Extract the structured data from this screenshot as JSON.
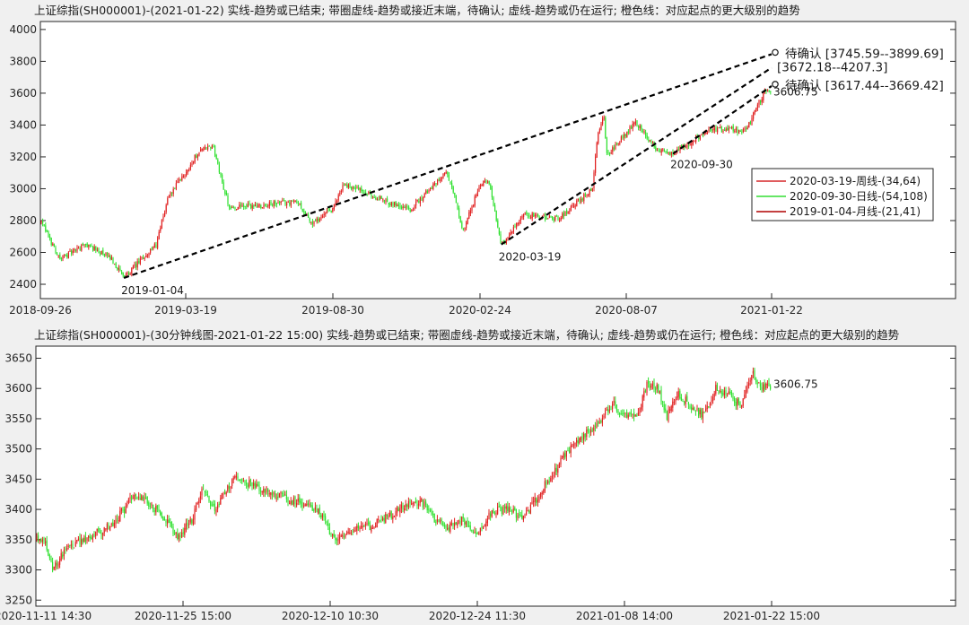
{
  "charts": [
    {
      "title": "上证综指(SH000001)-(2021-01-22)  实线-趋势或已结束;  带圈虚线-趋势或接近末端，待确认;  虚线-趋势或仍在运行;  橙色线：对应起点的更大级别的趋势",
      "chart_data": {
        "type": "line",
        "subtype": "candlestick",
        "x_ticks": [
          "2018-09-26",
          "2019-03-19",
          "2019-08-30",
          "2020-02-24",
          "2020-08-07",
          "2021-01-22"
        ],
        "y_ticks": [
          2400,
          2600,
          2800,
          3000,
          3200,
          3400,
          3600,
          3800,
          4000
        ],
        "ylim": [
          2310,
          4050
        ],
        "grid": false,
        "price_path": [
          {
            "x": "2018-09-26",
            "y": 2800
          },
          {
            "x": "2018-10-19",
            "y": 2560
          },
          {
            "x": "2018-11-20",
            "y": 2650
          },
          {
            "x": "2018-12-20",
            "y": 2560
          },
          {
            "x": "2019-01-04",
            "y": 2440
          },
          {
            "x": "2019-02-12",
            "y": 2650
          },
          {
            "x": "2019-02-26",
            "y": 2950
          },
          {
            "x": "2019-03-19",
            "y": 3100
          },
          {
            "x": "2019-04-04",
            "y": 3250
          },
          {
            "x": "2019-04-19",
            "y": 3260
          },
          {
            "x": "2019-04-26",
            "y": 3090
          },
          {
            "x": "2019-05-07",
            "y": 2880
          },
          {
            "x": "2019-06-17",
            "y": 2900
          },
          {
            "x": "2019-07-22",
            "y": 2920
          },
          {
            "x": "2019-08-06",
            "y": 2780
          },
          {
            "x": "2019-08-30",
            "y": 2870
          },
          {
            "x": "2019-09-12",
            "y": 3030
          },
          {
            "x": "2019-10-18",
            "y": 2950
          },
          {
            "x": "2019-12-03",
            "y": 2870
          },
          {
            "x": "2020-01-13",
            "y": 3110
          },
          {
            "x": "2020-01-23",
            "y": 2980
          },
          {
            "x": "2020-02-03",
            "y": 2720
          },
          {
            "x": "2020-02-24",
            "y": 3030
          },
          {
            "x": "2020-03-05",
            "y": 3050
          },
          {
            "x": "2020-03-19",
            "y": 2650
          },
          {
            "x": "2020-04-15",
            "y": 2840
          },
          {
            "x": "2020-05-22",
            "y": 2810
          },
          {
            "x": "2020-06-30",
            "y": 3000
          },
          {
            "x": "2020-07-06",
            "y": 3350
          },
          {
            "x": "2020-07-13",
            "y": 3450
          },
          {
            "x": "2020-07-16",
            "y": 3210
          },
          {
            "x": "2020-08-07",
            "y": 3350
          },
          {
            "x": "2020-08-18",
            "y": 3420
          },
          {
            "x": "2020-09-09",
            "y": 3260
          },
          {
            "x": "2020-09-30",
            "y": 3220
          },
          {
            "x": "2020-11-10",
            "y": 3370
          },
          {
            "x": "2020-12-09",
            "y": 3370
          },
          {
            "x": "2020-12-23",
            "y": 3360
          },
          {
            "x": "2021-01-13",
            "y": 3600
          },
          {
            "x": "2021-01-22",
            "y": 3606.75
          }
        ],
        "dashed_lines": [
          {
            "from": {
              "x": "2019-01-04",
              "y": 2440
            },
            "to": {
              "x": "2021-01-22",
              "y": 3845
            }
          },
          {
            "from": {
              "x": "2020-03-19",
              "y": 2650
            },
            "to": {
              "x": "2021-01-22",
              "y": 3760
            }
          },
          {
            "from": {
              "x": "2020-09-30",
              "y": 3220
            },
            "to": {
              "x": "2021-01-22",
              "y": 3645
            }
          }
        ],
        "annotations": [
          {
            "text": "2019-01-04",
            "x": "2019-01-04",
            "y": 2440
          },
          {
            "text": "2020-03-19",
            "x": "2020-03-19",
            "y": 2650
          },
          {
            "text": "2020-09-30",
            "x": "2020-09-30",
            "y": 3220
          },
          {
            "text": "3606.75",
            "x": "2021-01-22",
            "y": 3606.75
          }
        ],
        "target_labels": [
          {
            "marker": "o",
            "text": "待确认 [3745.59--3899.69]",
            "y": 3845
          },
          {
            "marker": "",
            "text": "[3672.18--4207.3]",
            "y": 3760
          },
          {
            "marker": "o",
            "text": "待确认 [3617.44--3669.42]",
            "y": 3645
          }
        ],
        "legend": {
          "placement": "right",
          "entries": [
            {
              "label": "2020-03-19-周线-(34,64)",
              "color": "#d62728"
            },
            {
              "label": "2020-09-30-日线-(54,108)",
              "color": "#33dd33"
            },
            {
              "label": "2019-01-04-月线-(21,41)",
              "color": "#b00000"
            }
          ]
        },
        "colors": {
          "up": "#e02020",
          "down": "#2ee02e",
          "dashed": "#000000"
        }
      }
    },
    {
      "title": "上证综指(SH000001)-(30分钟线图-2021-01-22 15:00)  实线-趋势或已结束;  带圈虚线-趋势或接近末端，待确认;  虚线-趋势或仍在运行;  橙色线：对应起点的更大级别的趋势",
      "chart_data": {
        "type": "line",
        "subtype": "candlestick",
        "x_ticks": [
          "2020-11-11 14:30",
          "2020-11-25 15:00",
          "2020-12-10 10:30",
          "2020-12-24 11:30",
          "2021-01-08 14:00",
          "2021-01-22 15:00"
        ],
        "y_ticks": [
          3250,
          3300,
          3350,
          3400,
          3450,
          3500,
          3550,
          3600,
          3650
        ],
        "ylim": [
          3240,
          3670
        ],
        "grid": false,
        "price_path": [
          {
            "x": 0,
            "y": 3350
          },
          {
            "x": 6,
            "y": 3345
          },
          {
            "x": 12,
            "y": 3300
          },
          {
            "x": 22,
            "y": 3340
          },
          {
            "x": 36,
            "y": 3350
          },
          {
            "x": 56,
            "y": 3380
          },
          {
            "x": 70,
            "y": 3425
          },
          {
            "x": 88,
            "y": 3395
          },
          {
            "x": 100,
            "y": 3355
          },
          {
            "x": 110,
            "y": 3380
          },
          {
            "x": 118,
            "y": 3440
          },
          {
            "x": 126,
            "y": 3400
          },
          {
            "x": 140,
            "y": 3450
          },
          {
            "x": 160,
            "y": 3435
          },
          {
            "x": 180,
            "y": 3415
          },
          {
            "x": 200,
            "y": 3400
          },
          {
            "x": 212,
            "y": 3345
          },
          {
            "x": 222,
            "y": 3365
          },
          {
            "x": 240,
            "y": 3375
          },
          {
            "x": 260,
            "y": 3405
          },
          {
            "x": 272,
            "y": 3415
          },
          {
            "x": 282,
            "y": 3380
          },
          {
            "x": 292,
            "y": 3370
          },
          {
            "x": 302,
            "y": 3385
          },
          {
            "x": 312,
            "y": 3355
          },
          {
            "x": 322,
            "y": 3395
          },
          {
            "x": 334,
            "y": 3400
          },
          {
            "x": 344,
            "y": 3385
          },
          {
            "x": 352,
            "y": 3410
          },
          {
            "x": 362,
            "y": 3450
          },
          {
            "x": 374,
            "y": 3490
          },
          {
            "x": 386,
            "y": 3520
          },
          {
            "x": 398,
            "y": 3545
          },
          {
            "x": 408,
            "y": 3575
          },
          {
            "x": 416,
            "y": 3555
          },
          {
            "x": 426,
            "y": 3555
          },
          {
            "x": 432,
            "y": 3610
          },
          {
            "x": 440,
            "y": 3600
          },
          {
            "x": 446,
            "y": 3555
          },
          {
            "x": 454,
            "y": 3590
          },
          {
            "x": 464,
            "y": 3570
          },
          {
            "x": 472,
            "y": 3555
          },
          {
            "x": 480,
            "y": 3600
          },
          {
            "x": 490,
            "y": 3590
          },
          {
            "x": 498,
            "y": 3570
          },
          {
            "x": 506,
            "y": 3625
          },
          {
            "x": 514,
            "y": 3600
          },
          {
            "x": 520,
            "y": 3606.75
          }
        ],
        "annotations": [
          {
            "text": "3606.75",
            "x": 520,
            "y": 3606.75
          }
        ],
        "colors": {
          "up": "#e02020",
          "down": "#2ee02e"
        }
      }
    }
  ]
}
